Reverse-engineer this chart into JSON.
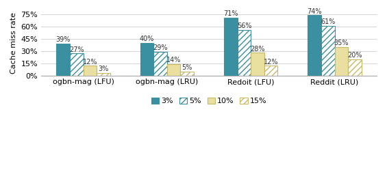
{
  "groups": [
    "ogbn-mag (LFU)",
    "ogbn-mag (LRU)",
    "Redoit (LFU)",
    "Reddit (LRU)"
  ],
  "series_labels": [
    "3%",
    "5%",
    "10%",
    "15%"
  ],
  "values": [
    [
      39,
      40,
      71,
      74
    ],
    [
      27,
      29,
      56,
      61
    ],
    [
      12,
      14,
      28,
      35
    ],
    [
      3,
      5,
      12,
      20
    ]
  ],
  "face_colors": [
    "#3a8fa0",
    "#ffffff",
    "#e8dfa0",
    "#ffffff"
  ],
  "edge_colors": [
    "#3a8fa0",
    "#3a8fa0",
    "#c8b864",
    "#c8b864"
  ],
  "hatches": [
    null,
    "////",
    null,
    "////"
  ],
  "hatch_colors_override": [
    null,
    "#3a8fa0",
    null,
    "#c8b864"
  ],
  "ylabel": "Cache miss rate",
  "ylim": [
    0,
    80
  ],
  "yticks": [
    0,
    15,
    30,
    45,
    60,
    75
  ],
  "ytick_labels": [
    "0%",
    "15%",
    "30%",
    "45%",
    "60%",
    "75%"
  ],
  "bar_width": 0.16,
  "annotation_fontsize": 7,
  "label_fontsize": 8,
  "tick_fontsize": 8,
  "legend_fontsize": 8,
  "background_color": "#ffffff"
}
